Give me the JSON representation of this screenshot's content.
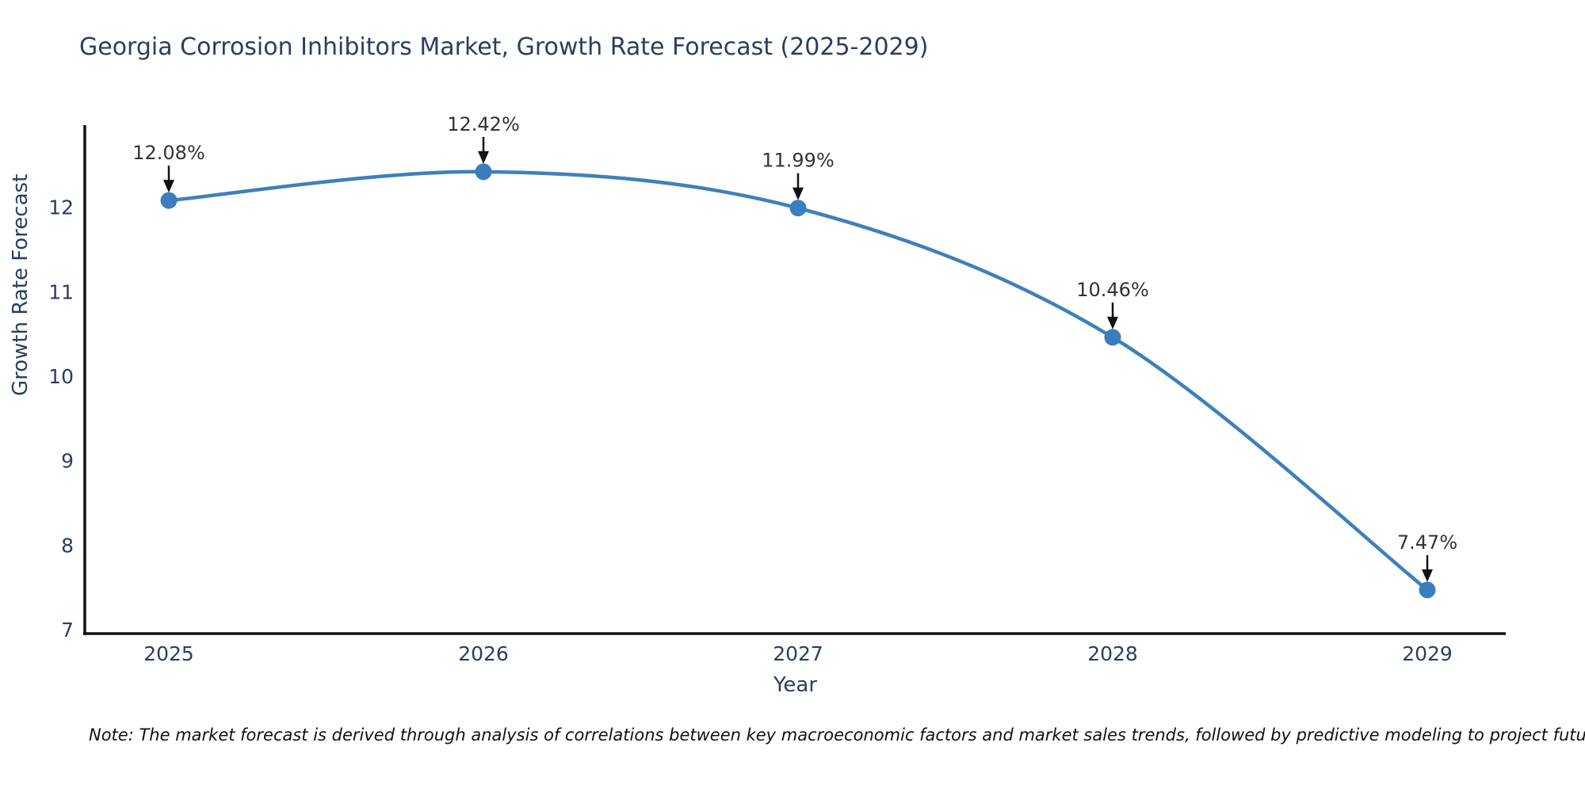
{
  "page": {
    "note": "Note: The market forecast is derived through analysis of correlations between key macroeconomic factors and market sales trends, followed by predictive modeling to project future sales"
  },
  "chart_data": {
    "type": "line",
    "title": "Georgia Corrosion Inhibitors Market, Growth Rate Forecast (2025-2029)",
    "xlabel": "Year",
    "ylabel": "Growth Rate Forecast",
    "categories": [
      "2025",
      "2026",
      "2027",
      "2028",
      "2029"
    ],
    "series": [
      {
        "name": "Growth Rate Forecast",
        "values": [
          12.08,
          12.42,
          11.99,
          10.46,
          7.47
        ]
      }
    ],
    "point_labels": [
      "12.08%",
      "12.42%",
      "11.99%",
      "10.46%",
      "7.47%"
    ],
    "yticks": [
      7,
      8,
      9,
      10,
      11,
      12
    ],
    "ylim": [
      7,
      13
    ],
    "grid": false,
    "legend": false,
    "line_shape": "spline",
    "annotation_arrows": true,
    "colors": {
      "line": "#3f80ba",
      "marker": "#3a7ebf",
      "axis": "#111111",
      "tick_label": "#2a3f5f",
      "title": "#2a3f5f",
      "annotation": "#333333",
      "arrow": "#111111",
      "background": "#ffffff"
    }
  }
}
